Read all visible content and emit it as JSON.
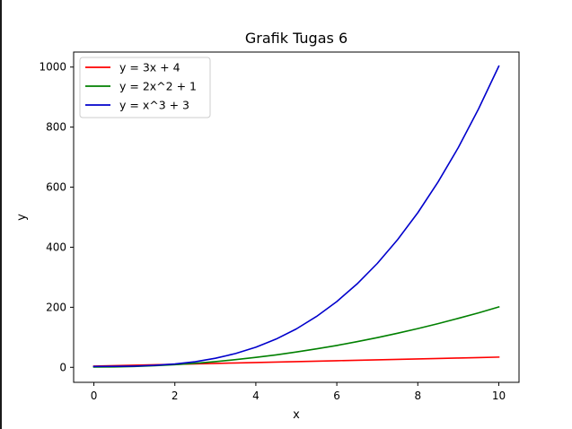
{
  "chart_data": {
    "type": "line",
    "title": "Grafik Tugas 6",
    "xlabel": "x",
    "ylabel": "y",
    "xlim": [
      -0.5,
      10.5
    ],
    "ylim": [
      -50,
      1050
    ],
    "xticks": [
      0,
      2,
      4,
      6,
      8,
      10
    ],
    "yticks": [
      0,
      200,
      400,
      600,
      800,
      1000
    ],
    "grid": false,
    "legend_position": "top-left",
    "x": [
      0,
      0.5,
      1,
      1.5,
      2,
      2.5,
      3,
      3.5,
      4,
      4.5,
      5,
      5.5,
      6,
      6.5,
      7,
      7.5,
      8,
      8.5,
      9,
      9.5,
      10
    ],
    "series": [
      {
        "name": "y = 3x + 4",
        "color": "#ff0000",
        "values": [
          4,
          5.5,
          7,
          8.5,
          10,
          11.5,
          13,
          14.5,
          16,
          17.5,
          19,
          20.5,
          22,
          23.5,
          25,
          26.5,
          28,
          29.5,
          31,
          32.5,
          34
        ]
      },
      {
        "name": "y = 2x^2 + 1",
        "color": "#008000",
        "values": [
          1,
          1.5,
          3,
          5.5,
          9,
          13.5,
          19,
          25.5,
          33,
          41.5,
          51,
          61.5,
          73,
          85.5,
          99,
          113.5,
          129,
          145.5,
          163,
          181.5,
          201
        ]
      },
      {
        "name": "y = x^3 + 3",
        "color": "#0000cc",
        "values": [
          3,
          3.1,
          4,
          6.4,
          11,
          18.6,
          30,
          45.9,
          67,
          94.1,
          128,
          169.4,
          219,
          277.6,
          346,
          424.9,
          515,
          617.1,
          732,
          860.4,
          1003
        ]
      }
    ]
  }
}
